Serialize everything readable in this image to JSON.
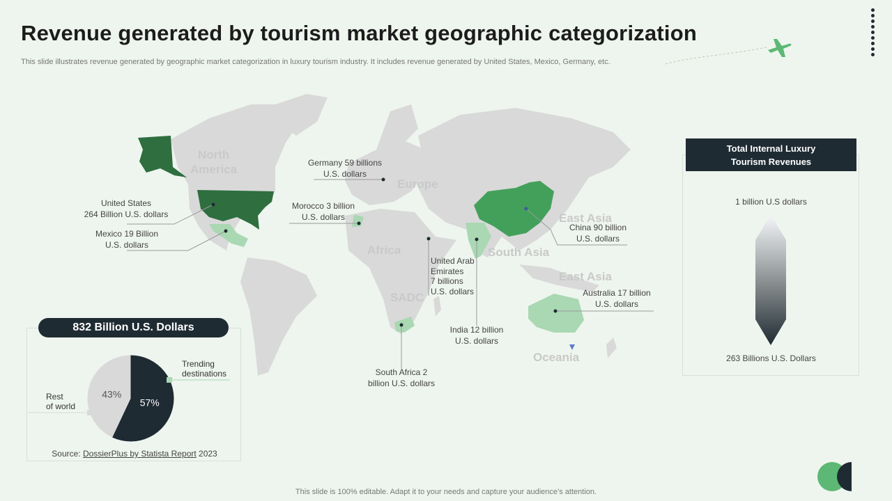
{
  "title": "Revenue generated by tourism market geographic categorization",
  "subtitle": "This slide illustrates revenue generated by geographic market categorization in luxury tourism industry. It includes revenue generated by United States, Mexico,  Germany, etc.",
  "footer": "This slide is 100% editable. Adapt it to your needs and capture your audience’s attention.",
  "colors": {
    "dark": "#1f2b33",
    "green_dark": "#2e6e3f",
    "green_mid": "#43a05b",
    "green_light": "#a9d8b3",
    "land": "#d9d9d9",
    "background": "#eef5ee"
  },
  "icons": {
    "plane": "airplane-icon",
    "dots": "vertical-dots-icon"
  },
  "regions": {
    "north_america_1": "North",
    "north_america_2": "America",
    "europe": "Europe",
    "africa": "Africa",
    "sadc": "SADC",
    "south_asia": "South Asia",
    "east_asia_1": "East Asia",
    "east_asia_2": "East Asia",
    "oceania": "Oceania"
  },
  "labels": {
    "us_1": "United States",
    "us_2": "264 Billion U.S. dollars",
    "mexico_1": "Mexico 19 Billion",
    "mexico_2": "U.S. dollars",
    "germany_1": "Germany 59 billions",
    "germany_2": "U.S. dollars",
    "morocco_1": "Morocco 3 billion",
    "morocco_2": "U.S. dollars",
    "uae_1": "United Arab",
    "uae_2": "Emirates",
    "uae_3": "7 billions",
    "uae_4": "U.S. dollars",
    "china_1": "China 90 billion",
    "china_2": "U.S. dollars",
    "australia_1": "Australia 17 billion",
    "australia_2": "U.S. dollars",
    "india_1": "India 12 billion",
    "india_2": "U.S. dollars",
    "south_africa_1": "South Africa 2",
    "south_africa_2": "billion U.S. dollars"
  },
  "revenue_panel": {
    "heading_1": "Total Internal Luxury",
    "heading_2": "Tourism Revenues",
    "top": "1 billion U.S dollars",
    "bottom": "263 Billions U.S. Dollars"
  },
  "pie_panel": {
    "heading": "832 Billion U.S. Dollars",
    "trending_1": "Trending",
    "trending_2": "destinations",
    "rest_1": "Rest",
    "rest_2": "of world",
    "source_prefix": "Source: ",
    "source_link": "DossierPlus  by Statista Report",
    "source_year": " 2023"
  },
  "chart_data": [
    {
      "type": "pie",
      "title": "832 Billion U.S. Dollars",
      "categories": [
        "Trending destinations",
        "Rest of world"
      ],
      "values": [
        57,
        43
      ],
      "value_labels": [
        "57%",
        "43%"
      ],
      "colors": [
        "#1f2b33",
        "#d9d9d9"
      ]
    },
    {
      "type": "table",
      "title": "Revenue generated by tourism market geographic categorization",
      "rows": [
        {
          "country": "United States",
          "value": 264,
          "unit": "Billion U.S. dollars"
        },
        {
          "country": "Mexico",
          "value": 19,
          "unit": "Billion U.S. dollars"
        },
        {
          "country": "Germany",
          "value": 59,
          "unit": "billions U.S. dollars"
        },
        {
          "country": "Morocco",
          "value": 3,
          "unit": "billion U.S. dollars"
        },
        {
          "country": "United Arab Emirates",
          "value": 7,
          "unit": "billions U.S. dollars"
        },
        {
          "country": "China",
          "value": 90,
          "unit": "billion U.S. dollars"
        },
        {
          "country": "Australia",
          "value": 17,
          "unit": "billion U.S. dollars"
        },
        {
          "country": "India",
          "value": 12,
          "unit": "billion U.S. dollars"
        },
        {
          "country": "South Africa",
          "value": 2,
          "unit": "billion U.S. dollars"
        }
      ]
    }
  ]
}
